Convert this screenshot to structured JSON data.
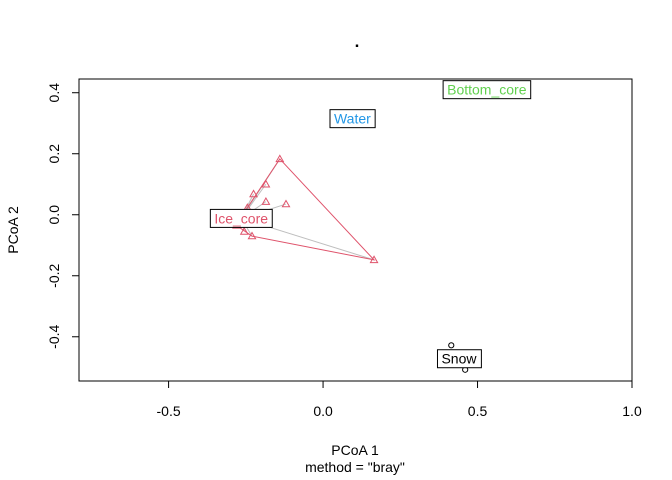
{
  "chart_data": {
    "type": "scatter",
    "title": ".",
    "xlabel": "PCoA 1",
    "sublabel": "method = \"bray\"",
    "ylabel": "PCoA 2",
    "xlim": [
      -0.79,
      1.0
    ],
    "ylim": [
      -0.545,
      0.445
    ],
    "x_ticks": [
      -0.5,
      0.0,
      0.5,
      1.0
    ],
    "x_tick_labels": [
      "-0.5",
      "0.0",
      "0.5",
      "1.0"
    ],
    "y_ticks": [
      -0.4,
      -0.2,
      0.0,
      0.2,
      0.4
    ],
    "y_tick_labels": [
      "-0.4",
      "-0.2",
      "0.0",
      "0.2",
      "0.4"
    ],
    "grid": false,
    "colors": {
      "ice_core": "#DF536B",
      "water": "#2297E6",
      "bottom_core": "#61D04F",
      "snow": "#000000",
      "spider": "#BEBEBE",
      "hull": "#DF536B"
    },
    "groups": [
      {
        "name": "Ice_core",
        "label_pos": [
          -0.265,
          -0.012
        ],
        "color": "#DF536B",
        "marker": "triangle",
        "centroid": [
          -0.265,
          -0.012
        ],
        "points": [
          [
            -0.14,
            0.183
          ],
          [
            -0.185,
            0.1
          ],
          [
            -0.225,
            0.068
          ],
          [
            -0.185,
            0.043
          ],
          [
            -0.12,
            0.035
          ],
          [
            -0.245,
            0.023
          ],
          [
            -0.265,
            -0.002
          ],
          [
            -0.28,
            -0.035
          ],
          [
            -0.255,
            -0.055
          ],
          [
            -0.23,
            -0.07
          ],
          [
            0.165,
            -0.148
          ]
        ],
        "hull": [
          [
            -0.14,
            0.183
          ],
          [
            0.165,
            -0.148
          ],
          [
            -0.23,
            -0.07
          ],
          [
            -0.28,
            -0.035
          ],
          [
            -0.245,
            0.023
          ]
        ]
      },
      {
        "name": "Water",
        "label_pos": [
          0.095,
          0.315
        ],
        "color": "#2297E6",
        "points": []
      },
      {
        "name": "Bottom_core",
        "label_pos": [
          0.53,
          0.41
        ],
        "color": "#61D04F",
        "points": []
      },
      {
        "name": "Snow",
        "label_pos": [
          0.44,
          -0.472
        ],
        "color": "#000000",
        "marker": "circle",
        "points": [
          [
            0.415,
            -0.428
          ],
          [
            0.46,
            -0.508
          ]
        ]
      }
    ]
  }
}
